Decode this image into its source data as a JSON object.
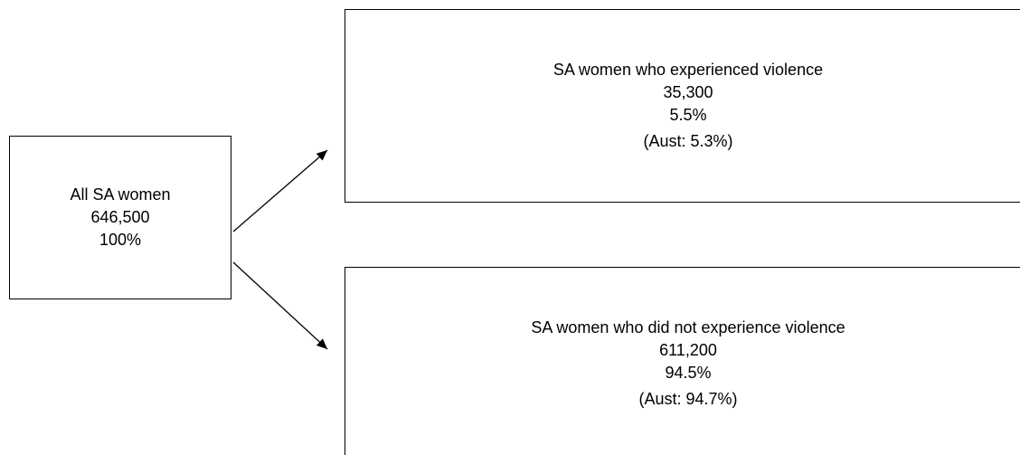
{
  "nodes": [
    {
      "lines": [
        "All SA women",
        "646,500",
        "100%"
      ]
    },
    {
      "lines": [
        "SA women who experienced violence",
        "35,300",
        "5.5%",
        "(Aust: 5.3%)"
      ]
    },
    {
      "lines": [
        "SA women who did not experience violence",
        "611,200",
        "94.5%",
        "(Aust: 94.7%)"
      ]
    }
  ]
}
